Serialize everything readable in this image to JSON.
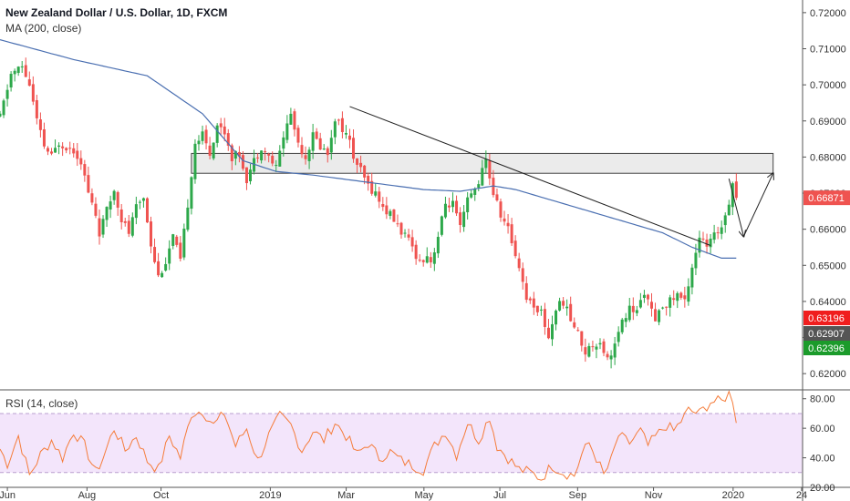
{
  "header": {
    "title": "New Zealand Dollar / U.S. Dollar, 1D, FXCM",
    "indicator": "MA (200, close)"
  },
  "rsi_panel": {
    "label": "RSI (14, close)"
  },
  "colors": {
    "up": "#26a69a",
    "candle_up": "#2da84a",
    "candle_down": "#ef5350",
    "ma": "#4a6fb1",
    "rsi": "#f57c3a",
    "rsi_band": "#f3e5fb",
    "last_price": "#ef5350",
    "red_label": "#f01e1e",
    "grey_label": "#555555",
    "green_label": "#1b9b2b"
  },
  "chart_data": [
    {
      "type": "candlestick",
      "title": "New Zealand Dollar / U.S. Dollar, 1D, FXCM",
      "x_ticks": [
        "Jun",
        "Aug",
        "Oct",
        "2019",
        "Mar",
        "May",
        "Jul",
        "Sep",
        "Nov",
        "2020",
        "24"
      ],
      "y_ticks": [
        "0.72000",
        "0.71000",
        "0.70000",
        "0.69000",
        "0.68000",
        "0.67000",
        "0.66000",
        "0.65000",
        "0.64000",
        "0.63000",
        "0.62000"
      ],
      "ylim": [
        0.6155,
        0.7235
      ],
      "price_path": [
        [
          0,
          0.691
        ],
        [
          3,
          0.703
        ],
        [
          6,
          0.705
        ],
        [
          8,
          0.7
        ],
        [
          10,
          0.69
        ],
        [
          12,
          0.683
        ],
        [
          14,
          0.68
        ],
        [
          16,
          0.684
        ],
        [
          18,
          0.683
        ],
        [
          20,
          0.682
        ],
        [
          22,
          0.679
        ],
        [
          24,
          0.67
        ],
        [
          26,
          0.664
        ],
        [
          27,
          0.659
        ],
        [
          29,
          0.665
        ],
        [
          31,
          0.671
        ],
        [
          33,
          0.663
        ],
        [
          35,
          0.659
        ],
        [
          37,
          0.666
        ],
        [
          39,
          0.669
        ],
        [
          41,
          0.656
        ],
        [
          43,
          0.647
        ],
        [
          45,
          0.651
        ],
        [
          47,
          0.658
        ],
        [
          49,
          0.651
        ],
        [
          51,
          0.667
        ],
        [
          53,
          0.684
        ],
        [
          55,
          0.686
        ],
        [
          57,
          0.681
        ],
        [
          59,
          0.689
        ],
        [
          61,
          0.687
        ],
        [
          63,
          0.68
        ],
        [
          65,
          0.681
        ],
        [
          67,
          0.674
        ],
        [
          69,
          0.679
        ],
        [
          71,
          0.683
        ],
        [
          73,
          0.68
        ],
        [
          75,
          0.677
        ],
        [
          77,
          0.686
        ],
        [
          79,
          0.692
        ],
        [
          81,
          0.684
        ],
        [
          83,
          0.68
        ],
        [
          85,
          0.686
        ],
        [
          87,
          0.683
        ],
        [
          89,
          0.681
        ],
        [
          91,
          0.691
        ],
        [
          93,
          0.688
        ],
        [
          95,
          0.684
        ],
        [
          96,
          0.68
        ],
        [
          98,
          0.676
        ],
        [
          100,
          0.672
        ],
        [
          102,
          0.67
        ],
        [
          104,
          0.666
        ],
        [
          106,
          0.664
        ],
        [
          108,
          0.661
        ],
        [
          110,
          0.658
        ],
        [
          112,
          0.655
        ],
        [
          114,
          0.651
        ],
        [
          116,
          0.653
        ],
        [
          117,
          0.651
        ],
        [
          119,
          0.658
        ],
        [
          121,
          0.667
        ],
        [
          123,
          0.667
        ],
        [
          125,
          0.66
        ],
        [
          127,
          0.668
        ],
        [
          129,
          0.671
        ],
        [
          131,
          0.676
        ],
        [
          132,
          0.679
        ],
        [
          134,
          0.67
        ],
        [
          136,
          0.664
        ],
        [
          138,
          0.66
        ],
        [
          140,
          0.653
        ],
        [
          141,
          0.65
        ],
        [
          143,
          0.641
        ],
        [
          145,
          0.639
        ],
        [
          147,
          0.637
        ],
        [
          149,
          0.63
        ],
        [
          151,
          0.638
        ],
        [
          153,
          0.64
        ],
        [
          155,
          0.635
        ],
        [
          157,
          0.631
        ],
        [
          159,
          0.626
        ],
        [
          161,
          0.628
        ],
        [
          163,
          0.629
        ],
        [
          165,
          0.624
        ],
        [
          167,
          0.628
        ],
        [
          169,
          0.634
        ],
        [
          171,
          0.638
        ],
        [
          173,
          0.637
        ],
        [
          175,
          0.643
        ],
        [
          176,
          0.64
        ],
        [
          178,
          0.634
        ],
        [
          180,
          0.639
        ],
        [
          182,
          0.64
        ],
        [
          184,
          0.642
        ],
        [
          186,
          0.64
        ],
        [
          188,
          0.65
        ],
        [
          190,
          0.658
        ],
        [
          192,
          0.655
        ],
        [
          194,
          0.658
        ],
        [
          196,
          0.661
        ],
        [
          198,
          0.668
        ],
        [
          199,
          0.673
        ],
        [
          200,
          0.669
        ]
      ],
      "ma200_path": [
        [
          0,
          0.7125
        ],
        [
          20,
          0.707
        ],
        [
          40,
          0.7025
        ],
        [
          55,
          0.692
        ],
        [
          66,
          0.679
        ],
        [
          75,
          0.676
        ],
        [
          85,
          0.675
        ],
        [
          100,
          0.673
        ],
        [
          115,
          0.671
        ],
        [
          125,
          0.6705
        ],
        [
          134,
          0.672
        ],
        [
          140,
          0.671
        ],
        [
          150,
          0.668
        ],
        [
          160,
          0.665
        ],
        [
          170,
          0.662
        ],
        [
          180,
          0.659
        ],
        [
          188,
          0.655
        ],
        [
          196,
          0.652
        ],
        [
          200,
          0.652
        ]
      ],
      "rsi": {
        "title": "RSI (14, close)",
        "y_ticks": [
          "80.00",
          "60.00",
          "40.00",
          "20.00"
        ],
        "ylim": [
          20,
          86
        ],
        "bands": [
          70,
          30
        ],
        "path": [
          [
            0,
            46
          ],
          [
            2,
            36
          ],
          [
            5,
            55
          ],
          [
            8,
            28
          ],
          [
            11,
            42
          ],
          [
            14,
            52
          ],
          [
            17,
            40
          ],
          [
            20,
            58
          ],
          [
            23,
            48
          ],
          [
            26,
            30
          ],
          [
            28,
            40
          ],
          [
            31,
            60
          ],
          [
            34,
            45
          ],
          [
            37,
            55
          ],
          [
            40,
            38
          ],
          [
            43,
            32
          ],
          [
            46,
            55
          ],
          [
            49,
            40
          ],
          [
            52,
            70
          ],
          [
            55,
            72
          ],
          [
            58,
            62
          ],
          [
            61,
            70
          ],
          [
            64,
            48
          ],
          [
            67,
            60
          ],
          [
            70,
            38
          ],
          [
            73,
            55
          ],
          [
            76,
            68
          ],
          [
            79,
            62
          ],
          [
            82,
            45
          ],
          [
            85,
            58
          ],
          [
            88,
            52
          ],
          [
            91,
            64
          ],
          [
            94,
            55
          ],
          [
            97,
            42
          ],
          [
            100,
            50
          ],
          [
            103,
            40
          ],
          [
            106,
            44
          ],
          [
            109,
            38
          ],
          [
            112,
            35
          ],
          [
            115,
            32
          ],
          [
            118,
            48
          ],
          [
            121,
            58
          ],
          [
            124,
            42
          ],
          [
            127,
            64
          ],
          [
            130,
            52
          ],
          [
            133,
            68
          ],
          [
            135,
            48
          ],
          [
            138,
            40
          ],
          [
            141,
            32
          ],
          [
            144,
            30
          ],
          [
            147,
            26
          ],
          [
            150,
            35
          ],
          [
            153,
            30
          ],
          [
            156,
            28
          ],
          [
            158,
            42
          ],
          [
            160,
            50
          ],
          [
            162,
            40
          ],
          [
            164,
            28
          ],
          [
            166,
            38
          ],
          [
            168,
            55
          ],
          [
            171,
            50
          ],
          [
            174,
            58
          ],
          [
            176,
            48
          ],
          [
            178,
            54
          ],
          [
            181,
            62
          ],
          [
            183,
            58
          ],
          [
            185,
            65
          ],
          [
            187,
            72
          ],
          [
            190,
            70
          ],
          [
            193,
            78
          ],
          [
            196,
            78
          ],
          [
            198,
            84
          ],
          [
            199,
            80
          ],
          [
            200,
            66
          ]
        ]
      },
      "annotations": {
        "resistance_zone": [
          0.6755,
          0.681
        ],
        "trendline": [
          [
            95,
            0.694
          ],
          [
            193,
            0.6555
          ]
        ],
        "projection": [
          [
            198,
            0.674
          ],
          [
            202,
            0.658
          ],
          [
            210,
            0.6755
          ]
        ]
      },
      "price_labels": [
        {
          "text": "0.66871",
          "value": 0.66871,
          "color": "last_price"
        },
        {
          "text": "0.63196",
          "value": 0.63196,
          "color": "red_label"
        },
        {
          "text": "0.62907",
          "value": 0.62907,
          "color": "grey_label"
        },
        {
          "text": "0.62396",
          "value": 0.62396,
          "color": "green_label"
        }
      ]
    }
  ]
}
